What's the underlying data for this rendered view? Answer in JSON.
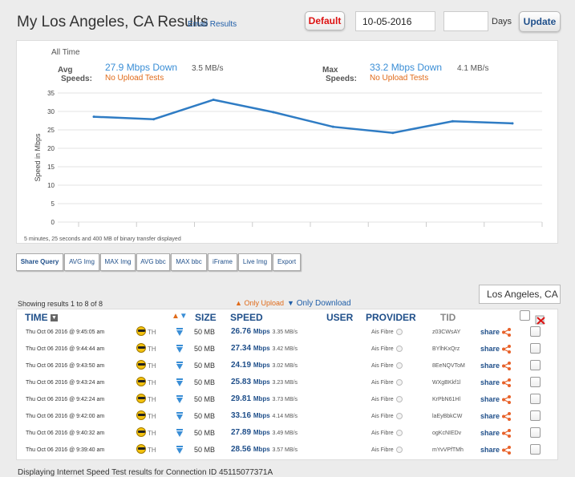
{
  "header": {
    "title": "My Los Angeles, CA Results",
    "email_link": "Email Results",
    "default_button": "Default",
    "date_value": "10-05-2016",
    "days_value": "",
    "days_label": "Days",
    "update_button": "Update"
  },
  "summary": {
    "all_time": "All Time",
    "avg_label_1": "Avg",
    "avg_label_2": "Speeds:",
    "avg_down": "27.9 Mbps Down",
    "avg_mbs": "3.5 MB/s",
    "avg_upload": "No Upload Tests",
    "max_label_1": "Max",
    "max_label_2": "Speeds:",
    "max_down": "33.2 Mbps Down",
    "max_mbs": "4.1 MB/s",
    "max_upload": "No Upload Tests"
  },
  "chart_data": {
    "type": "line",
    "ylabel": "Speed in Mbps",
    "ylim": [
      0,
      35
    ],
    "yticks": [
      0,
      5,
      10,
      15,
      20,
      25,
      30,
      35
    ],
    "grid": true,
    "series": [
      {
        "values": [
          28.56,
          27.89,
          33.16,
          29.81,
          25.83,
          24.19,
          27.34,
          26.76
        ],
        "color": "#2f7cc4"
      }
    ],
    "footnote": "5 minutes, 25 seconds and 400 MB of binary transfer displayed"
  },
  "toolbar": [
    "Share Query",
    "AVG Img",
    "MAX Img",
    "AVG bbc",
    "MAX bbc",
    "iFrame",
    "Live Img",
    "Export"
  ],
  "results": {
    "showing": "Showing results 1 to 8 of 8",
    "only_upload": "Only Upload",
    "only_download": "Only Download",
    "location": "Los Angeles, CA",
    "columns": {
      "time": "TIME",
      "size": "SIZE",
      "speed": "SPEED",
      "user": "USER",
      "provider": "PROVIDER",
      "tid": "TID"
    },
    "rows": [
      {
        "time": "Thu Oct 06 2016 @ 9:45:05 am",
        "th": "TH",
        "size": "50 MB",
        "speed": "26.76",
        "unit": "Mbps",
        "mbs": "3.35 MB/s",
        "provider": "Ais Fibre",
        "tid": "z03CWsAY",
        "share": "share"
      },
      {
        "time": "Thu Oct 06 2016 @ 9:44:44 am",
        "th": "TH",
        "size": "50 MB",
        "speed": "27.34",
        "unit": "Mbps",
        "mbs": "3.42 MB/s",
        "provider": "Ais Fibre",
        "tid": "BYlhKxQrz",
        "share": "share"
      },
      {
        "time": "Thu Oct 06 2016 @ 9:43:50 am",
        "th": "TH",
        "size": "50 MB",
        "speed": "24.19",
        "unit": "Mbps",
        "mbs": "3.02 MB/s",
        "provider": "Ais Fibre",
        "tid": "8EeNQVToM",
        "share": "share"
      },
      {
        "time": "Thu Oct 06 2016 @ 9:43:24 am",
        "th": "TH",
        "size": "50 MB",
        "speed": "25.83",
        "unit": "Mbps",
        "mbs": "3.23 MB/s",
        "provider": "Ais Fibre",
        "tid": "WXgBKkf1l",
        "share": "share"
      },
      {
        "time": "Thu Oct 06 2016 @ 9:42:24 am",
        "th": "TH",
        "size": "50 MB",
        "speed": "29.81",
        "unit": "Mbps",
        "mbs": "3.73 MB/s",
        "provider": "Ais Fibre",
        "tid": "KrPbN61Hl",
        "share": "share"
      },
      {
        "time": "Thu Oct 06 2016 @ 9:42:00 am",
        "th": "TH",
        "size": "50 MB",
        "speed": "33.16",
        "unit": "Mbps",
        "mbs": "4.14 MB/s",
        "provider": "Ais Fibre",
        "tid": "laEyBbkCW",
        "share": "share"
      },
      {
        "time": "Thu Oct 06 2016 @ 9:40:32 am",
        "th": "TH",
        "size": "50 MB",
        "speed": "27.89",
        "unit": "Mbps",
        "mbs": "3.49 MB/s",
        "provider": "Ais Fibre",
        "tid": "ogKcNIEDv",
        "share": "share"
      },
      {
        "time": "Thu Oct 06 2016 @ 9:39:40 am",
        "th": "TH",
        "size": "50 MB",
        "speed": "28.56",
        "unit": "Mbps",
        "mbs": "3.57 MB/s",
        "provider": "Ais Fibre",
        "tid": "mYvVPfTMh",
        "share": "share"
      }
    ]
  },
  "footer": {
    "text": "Displaying Internet Speed Test results for Connection ID 45115077371A"
  }
}
